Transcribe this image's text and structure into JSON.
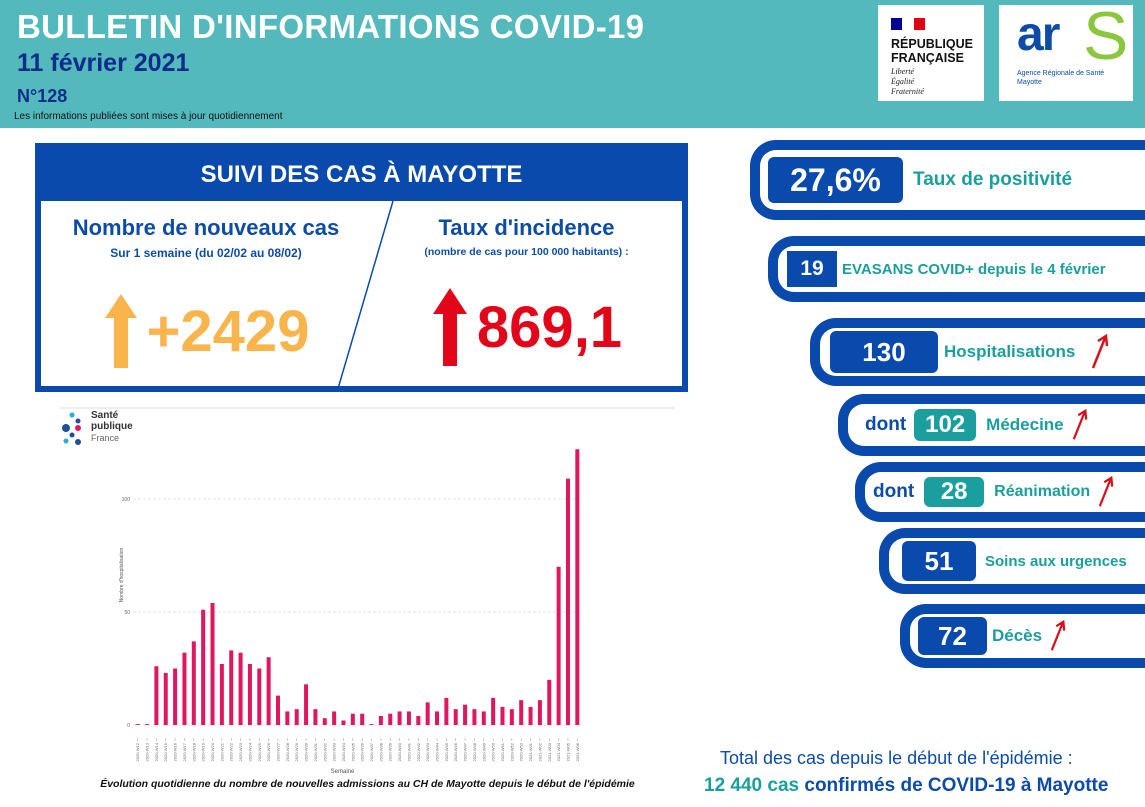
{
  "header": {
    "title": "BULLETIN D'INFORMATIONS COVID-19",
    "date": "11 février 2021",
    "number": "N°128",
    "note": "Les informations publiées sont mises à jour quotidiennement"
  },
  "logos": {
    "rf": {
      "line1": "RÉPUBLIQUE",
      "line2": "FRANÇAISE",
      "motto": [
        "Liberté",
        "Égalité",
        "Fraternité"
      ]
    },
    "ars": {
      "text": "ars",
      "sub1": "Agence Régionale de Santé",
      "sub2": "Mayotte"
    },
    "spf": {
      "l1": "Santé",
      "l2": "publique",
      "l3": "France"
    }
  },
  "suivi": {
    "title": "SUIVI DES CAS À MAYOTTE",
    "cases": {
      "heading": "Nombre de nouveaux cas",
      "sub": "Sur 1 semaine (du 02/02 au 08/02)",
      "value": "+2429",
      "color": "#f9b54c",
      "trend": "up"
    },
    "incidence": {
      "heading": "Taux d'incidence",
      "sub": "(nombre de cas pour 100 000 habitants) :",
      "value": "869,1",
      "color": "#e3061a",
      "trend": "up"
    }
  },
  "indicators": [
    {
      "value": "27,6%",
      "label": "Taux de positivité"
    },
    {
      "value": "19",
      "label": "EVASANS COVID+ depuis le 4 février"
    },
    {
      "value": "130",
      "label": "Hospitalisations",
      "trend": "up"
    },
    {
      "prefix": "dont",
      "value": "102",
      "label": "Médecine",
      "trend": "up"
    },
    {
      "prefix": "dont",
      "value": "28",
      "label": "Réanimation",
      "trend": "up"
    },
    {
      "value": "51",
      "label": "Soins aux urgences"
    },
    {
      "value": "72",
      "label": "Décès",
      "trend": "up"
    }
  ],
  "total": {
    "line1": "Total des cas depuis le début de l'épidémie :",
    "count": "12 440 cas",
    "rest": " confirmés de COVID-19 à Mayotte"
  },
  "chart_data": {
    "type": "bar",
    "xlabel": "Semaine",
    "ylabel": "Nombre d'hospitalisation",
    "ylim": [
      -5,
      128
    ],
    "yticks": [
      0,
      50,
      100
    ],
    "grid": true,
    "color": "#e0175f",
    "categories": [
      "2020-W12",
      "2020-W13",
      "2020-W14",
      "2020-W15",
      "2020-W16",
      "2020-W17",
      "2020-W18",
      "2020-W19",
      "2020-W20",
      "2020-W21",
      "2020-W22",
      "2020-W23",
      "2020-W24",
      "2020-W25",
      "2020-W26",
      "2020-W27",
      "2020-W28",
      "2020-W29",
      "2020-W30",
      "2020-W31",
      "2020-W32",
      "2020-W33",
      "2020-W34",
      "2020-W35",
      "2020-W36",
      "2020-W37",
      "2020-W38",
      "2020-W39",
      "2020-W40",
      "2020-W41",
      "2020-W42",
      "2020-W43",
      "2020-W44",
      "2020-W45",
      "2020-W46",
      "2020-W47",
      "2020-W48",
      "2020-W49",
      "2020-W50",
      "2020-W51",
      "2020-W52",
      "2020-W53",
      "2021-W01",
      "2021-W02",
      "2021-W03",
      "2021-W04",
      "2021-W05",
      "2021-W06"
    ],
    "values": [
      0,
      0,
      26,
      23,
      25,
      32,
      37,
      51,
      54,
      27,
      33,
      32,
      27,
      25,
      30,
      13,
      6,
      7,
      18,
      7,
      3,
      6,
      2,
      5,
      5,
      0,
      4,
      5,
      6,
      6,
      4,
      10,
      6,
      12,
      7,
      9,
      7,
      6,
      12,
      8,
      7,
      11,
      8,
      11,
      20,
      70,
      109,
      122
    ],
    "caption": "Évolution quotidienne du nombre de nouvelles admissions au CH de Mayotte depuis le début de l'épidémie"
  }
}
